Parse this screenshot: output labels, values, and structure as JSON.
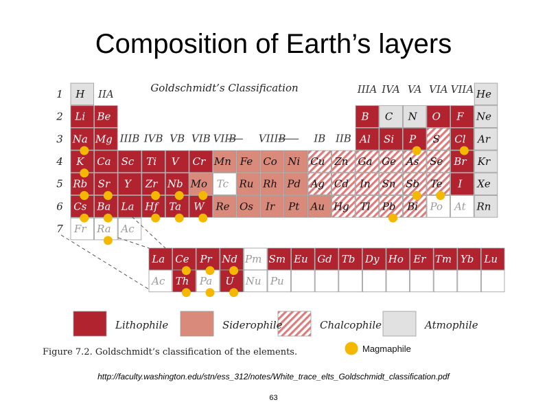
{
  "slide": {
    "title": "Composition of Earth’s layers",
    "source": "http://faculty.washington.edu/stn/ess_312/notes/White_trace_elts_Goldschmidt_classification.pdf",
    "page_number": "63"
  },
  "figure": {
    "heading": "Goldschmidt’s Classification",
    "caption": "Figure 7.2.  Goldschmidt’s classification of the elements.",
    "period_labels": [
      "1",
      "2",
      "3",
      "4",
      "5",
      "6",
      "7"
    ],
    "group_labels": [
      {
        "text": "IIA",
        "at": "above-col-2"
      },
      {
        "text": "IIIA",
        "at": "above-col-13"
      },
      {
        "text": "IVA",
        "at": "above-col-14"
      },
      {
        "text": "VA",
        "at": "above-col-15"
      },
      {
        "text": "VIA",
        "at": "above-col-16"
      },
      {
        "text": "VIIA",
        "at": "above-col-17"
      },
      {
        "text": "IIIB",
        "at": "row-3-col-3"
      },
      {
        "text": "IVB",
        "at": "row-3-col-4"
      },
      {
        "text": "VB",
        "at": "row-3-col-5"
      },
      {
        "text": "VIB",
        "at": "row-3-col-6"
      },
      {
        "text": "VIIB",
        "at": "row-3-col-7"
      },
      {
        "text": "VIIIB",
        "at": "row-3-col-9"
      },
      {
        "text": "IB",
        "at": "row-3-col-11"
      },
      {
        "text": "IIB",
        "at": "row-3-col-12"
      }
    ],
    "colors": {
      "lithophile": "#b0232f",
      "siderophile": "#d98a7a",
      "chalcophile_stripe": "#e07b7b",
      "atmophile": "#e1e1e1",
      "magmaphile": "#f5b800"
    },
    "legend": {
      "lithophile": "Lithophile",
      "siderophile": "Siderophile",
      "chalcophile": "Chalcophile",
      "atmophile": "Atmophile",
      "magmaphile": "Magmaphile"
    },
    "elements": [
      {
        "sym": "H",
        "row": 1,
        "col": 1,
        "type": "atmophile"
      },
      {
        "sym": "He",
        "row": 1,
        "col": 18,
        "type": "atmophile"
      },
      {
        "sym": "Li",
        "row": 2,
        "col": 1,
        "type": "lithophile"
      },
      {
        "sym": "Be",
        "row": 2,
        "col": 2,
        "type": "lithophile"
      },
      {
        "sym": "B",
        "row": 2,
        "col": 13,
        "type": "lithophile"
      },
      {
        "sym": "C",
        "row": 2,
        "col": 14,
        "type": "atmophile"
      },
      {
        "sym": "N",
        "row": 2,
        "col": 15,
        "type": "atmophile"
      },
      {
        "sym": "O",
        "row": 2,
        "col": 16,
        "type": "lithophile"
      },
      {
        "sym": "F",
        "row": 2,
        "col": 17,
        "type": "lithophile"
      },
      {
        "sym": "Ne",
        "row": 2,
        "col": 18,
        "type": "atmophile"
      },
      {
        "sym": "Na",
        "row": 3,
        "col": 1,
        "type": "lithophile",
        "magma": true
      },
      {
        "sym": "Mg",
        "row": 3,
        "col": 2,
        "type": "lithophile"
      },
      {
        "sym": "Al",
        "row": 3,
        "col": 13,
        "type": "lithophile"
      },
      {
        "sym": "Si",
        "row": 3,
        "col": 14,
        "type": "lithophile"
      },
      {
        "sym": "P",
        "row": 3,
        "col": 15,
        "type": "lithophile",
        "magma": true
      },
      {
        "sym": "S",
        "row": 3,
        "col": 16,
        "type": "chalcophile"
      },
      {
        "sym": "Cl",
        "row": 3,
        "col": 17,
        "type": "lithophile",
        "magma": true
      },
      {
        "sym": "Ar",
        "row": 3,
        "col": 18,
        "type": "atmophile"
      },
      {
        "sym": "K",
        "row": 4,
        "col": 1,
        "type": "lithophile",
        "magma": true
      },
      {
        "sym": "Ca",
        "row": 4,
        "col": 2,
        "type": "lithophile"
      },
      {
        "sym": "Sc",
        "row": 4,
        "col": 3,
        "type": "lithophile"
      },
      {
        "sym": "Ti",
        "row": 4,
        "col": 4,
        "type": "lithophile"
      },
      {
        "sym": "V",
        "row": 4,
        "col": 5,
        "type": "lithophile"
      },
      {
        "sym": "Cr",
        "row": 4,
        "col": 6,
        "type": "lithophile"
      },
      {
        "sym": "Mn",
        "row": 4,
        "col": 7,
        "type": "siderophile"
      },
      {
        "sym": "Fe",
        "row": 4,
        "col": 8,
        "type": "siderophile"
      },
      {
        "sym": "Co",
        "row": 4,
        "col": 9,
        "type": "siderophile"
      },
      {
        "sym": "Ni",
        "row": 4,
        "col": 10,
        "type": "siderophile"
      },
      {
        "sym": "Cu",
        "row": 4,
        "col": 11,
        "type": "chalcophile"
      },
      {
        "sym": "Zn",
        "row": 4,
        "col": 12,
        "type": "chalcophile"
      },
      {
        "sym": "Ga",
        "row": 4,
        "col": 13,
        "type": "chalcophile"
      },
      {
        "sym": "Ge",
        "row": 4,
        "col": 14,
        "type": "chalcophile"
      },
      {
        "sym": "As",
        "row": 4,
        "col": 15,
        "type": "chalcophile"
      },
      {
        "sym": "Se",
        "row": 4,
        "col": 16,
        "type": "chalcophile"
      },
      {
        "sym": "Br",
        "row": 4,
        "col": 17,
        "type": "lithophile"
      },
      {
        "sym": "Kr",
        "row": 4,
        "col": 18,
        "type": "atmophile"
      },
      {
        "sym": "Rb",
        "row": 5,
        "col": 1,
        "type": "lithophile",
        "magma": true
      },
      {
        "sym": "Sr",
        "row": 5,
        "col": 2,
        "type": "lithophile",
        "magma": true
      },
      {
        "sym": "Y",
        "row": 5,
        "col": 3,
        "type": "lithophile"
      },
      {
        "sym": "Zr",
        "row": 5,
        "col": 4,
        "type": "lithophile",
        "magma": true
      },
      {
        "sym": "Nb",
        "row": 5,
        "col": 5,
        "type": "lithophile",
        "magma": true
      },
      {
        "sym": "Mo",
        "row": 5,
        "col": 6,
        "type": "siderophile",
        "magma": true
      },
      {
        "sym": "Tc",
        "row": 5,
        "col": 7,
        "type": "empty"
      },
      {
        "sym": "Ru",
        "row": 5,
        "col": 8,
        "type": "siderophile"
      },
      {
        "sym": "Rh",
        "row": 5,
        "col": 9,
        "type": "siderophile"
      },
      {
        "sym": "Pd",
        "row": 5,
        "col": 10,
        "type": "siderophile"
      },
      {
        "sym": "Ag",
        "row": 5,
        "col": 11,
        "type": "chalcophile"
      },
      {
        "sym": "Cd",
        "row": 5,
        "col": 12,
        "type": "chalcophile"
      },
      {
        "sym": "In",
        "row": 5,
        "col": 13,
        "type": "chalcophile"
      },
      {
        "sym": "Sn",
        "row": 5,
        "col": 14,
        "type": "chalcophile"
      },
      {
        "sym": "Sb",
        "row": 5,
        "col": 15,
        "type": "chalcophile",
        "magma": true
      },
      {
        "sym": "Te",
        "row": 5,
        "col": 16,
        "type": "chalcophile",
        "magma": true
      },
      {
        "sym": "I",
        "row": 5,
        "col": 17,
        "type": "lithophile"
      },
      {
        "sym": "Xe",
        "row": 5,
        "col": 18,
        "type": "atmophile"
      },
      {
        "sym": "Cs",
        "row": 6,
        "col": 1,
        "type": "lithophile",
        "magma": true
      },
      {
        "sym": "Ba",
        "row": 6,
        "col": 2,
        "type": "lithophile",
        "magma": true
      },
      {
        "sym": "La",
        "row": 6,
        "col": 3,
        "type": "lithophile"
      },
      {
        "sym": "Hf",
        "row": 6,
        "col": 4,
        "type": "lithophile",
        "magma": true
      },
      {
        "sym": "Ta",
        "row": 6,
        "col": 5,
        "type": "lithophile",
        "magma": true
      },
      {
        "sym": "W",
        "row": 6,
        "col": 6,
        "type": "lithophile",
        "magma": true
      },
      {
        "sym": "Re",
        "row": 6,
        "col": 7,
        "type": "siderophile"
      },
      {
        "sym": "Os",
        "row": 6,
        "col": 8,
        "type": "siderophile"
      },
      {
        "sym": "Ir",
        "row": 6,
        "col": 9,
        "type": "siderophile"
      },
      {
        "sym": "Pt",
        "row": 6,
        "col": 10,
        "type": "siderophile"
      },
      {
        "sym": "Au",
        "row": 6,
        "col": 11,
        "type": "siderophile"
      },
      {
        "sym": "Hg",
        "row": 6,
        "col": 12,
        "type": "chalcophile"
      },
      {
        "sym": "Tl",
        "row": 6,
        "col": 13,
        "type": "chalcophile"
      },
      {
        "sym": "Pb",
        "row": 6,
        "col": 14,
        "type": "chalcophile",
        "magma": true
      },
      {
        "sym": "Bi",
        "row": 6,
        "col": 15,
        "type": "chalcophile"
      },
      {
        "sym": "Po",
        "row": 6,
        "col": 16,
        "type": "empty"
      },
      {
        "sym": "At",
        "row": 6,
        "col": 17,
        "type": "empty"
      },
      {
        "sym": "Rn",
        "row": 6,
        "col": 18,
        "type": "atmophile"
      },
      {
        "sym": "Fr",
        "row": 7,
        "col": 1,
        "type": "empty"
      },
      {
        "sym": "Ra",
        "row": 7,
        "col": 2,
        "type": "empty",
        "magma": true
      },
      {
        "sym": "Ac",
        "row": 7,
        "col": 3,
        "type": "empty"
      }
    ],
    "lanthanides": [
      {
        "sym": "La",
        "type": "lithophile"
      },
      {
        "sym": "Ce",
        "type": "lithophile",
        "magma": true
      },
      {
        "sym": "Pr",
        "type": "lithophile",
        "magma": true
      },
      {
        "sym": "Nd",
        "type": "lithophile",
        "magma": true
      },
      {
        "sym": "Pm",
        "type": "empty"
      },
      {
        "sym": "Sm",
        "type": "lithophile"
      },
      {
        "sym": "Eu",
        "type": "lithophile"
      },
      {
        "sym": "Gd",
        "type": "lithophile"
      },
      {
        "sym": "Tb",
        "type": "lithophile"
      },
      {
        "sym": "Dy",
        "type": "lithophile"
      },
      {
        "sym": "Ho",
        "type": "lithophile"
      },
      {
        "sym": "Er",
        "type": "lithophile"
      },
      {
        "sym": "Tm",
        "type": "lithophile"
      },
      {
        "sym": "Yb",
        "type": "lithophile"
      },
      {
        "sym": "Lu",
        "type": "lithophile"
      }
    ],
    "actinides": [
      {
        "sym": "Ac",
        "type": "empty"
      },
      {
        "sym": "Th",
        "type": "lithophile",
        "magma": true
      },
      {
        "sym": "Pa",
        "type": "empty",
        "magma": true
      },
      {
        "sym": "U",
        "type": "lithophile",
        "magma": true
      },
      {
        "sym": "Nu",
        "type": "empty"
      },
      {
        "sym": "Pu",
        "type": "empty"
      },
      {
        "sym": "",
        "type": "empty"
      },
      {
        "sym": "",
        "type": "empty"
      },
      {
        "sym": "",
        "type": "empty"
      },
      {
        "sym": "",
        "type": "empty"
      },
      {
        "sym": "",
        "type": "empty"
      },
      {
        "sym": "",
        "type": "empty"
      },
      {
        "sym": "",
        "type": "empty"
      },
      {
        "sym": "",
        "type": "empty"
      },
      {
        "sym": "",
        "type": "empty"
      }
    ]
  }
}
